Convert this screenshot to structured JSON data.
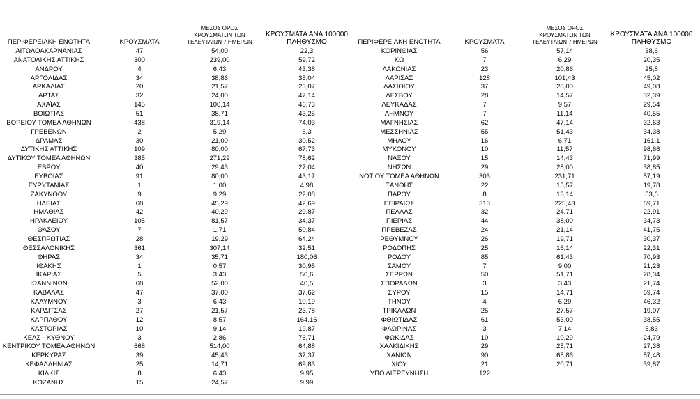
{
  "table": {
    "header": [
      "ΠΕΡΙΦΕΡΕΙΑΚΗ ΕΝΟΤΗΤΑ",
      "ΚΡΟΥΣΜΑΤΑ",
      "ΜΕΣΟΣ ΟΡΟΣ ΚΡΟΥΣΜΑΤΩΝ ΤΩΝ ΤΕΛΕΥΤΑΙΩΝ 7 ΗΜΕΡΩΝ",
      "ΚΡΟΥΣΜΑΤΑ ΑΝΑ 100000 ΠΛΗΘΥΣΜΟ",
      "ΠΕΡΙΦΕΡΕΙΑΚΗ ΕΝΟΤΗΤΑ",
      "ΚΡΟΥΣΜΑΤΑ",
      "ΜΕΣΟΣ ΟΡΟΣ ΚΡΟΥΣΜΑΤΩΝ ΤΩΝ ΤΕΛΕΥΤΑΙΩΝ 7 ΗΜΕΡΩΝ",
      "ΚΡΟΥΣΜΑΤΑ ΑΝΑ 100000 ΠΛΗΘΥΣΜΟ"
    ],
    "rows": [
      [
        "ΑΙΤΩΛΟΑΚΑΡΝΑΝΙΑΣ",
        "47",
        "54,00",
        "22,3",
        "ΚΟΡΙΝΘΙΑΣ",
        "56",
        "57,14",
        "38,6"
      ],
      [
        "ΑΝΑΤΟΛΙΚΗΣ ΑΤΤΙΚΗΣ",
        "300",
        "239,00",
        "59,72",
        "ΚΩ",
        "7",
        "6,29",
        "20,35"
      ],
      [
        "ΑΝΔΡΟΥ",
        "4",
        "6,43",
        "43,38",
        "ΛΑΚΩΝΙΑΣ",
        "23",
        "20,86",
        "25,8"
      ],
      [
        "ΑΡΓΟΛΙΔΑΣ",
        "34",
        "38,86",
        "35,04",
        "ΛΑΡΙΣΑΣ",
        "128",
        "101,43",
        "45,02"
      ],
      [
        "ΑΡΚΑΔΙΑΣ",
        "20",
        "21,57",
        "23,07",
        "ΛΑΣΙΘΙΟΥ",
        "37",
        "28,00",
        "49,08"
      ],
      [
        "ΑΡΤΑΣ",
        "32",
        "24,00",
        "47,14",
        "ΛΕΣΒΟΥ",
        "28",
        "14,57",
        "32,39"
      ],
      [
        "ΑΧΑΪΑΣ",
        "145",
        "100,14",
        "46,73",
        "ΛΕΥΚΑΔΑΣ",
        "7",
        "9,57",
        "29,54"
      ],
      [
        "ΒΟΙΩΤΙΑΣ",
        "51",
        "38,71",
        "43,25",
        "ΛΗΜΝΟΥ",
        "7",
        "11,14",
        "40,55"
      ],
      [
        "ΒΟΡΕΙΟΥ ΤΟΜΕΑ ΑΘΗΝΩΝ",
        "438",
        "319,14",
        "74,03",
        "ΜΑΓΝΗΣΙΑΣ",
        "62",
        "47,14",
        "32,63"
      ],
      [
        "ΓΡΕΒΕΝΩΝ",
        "2",
        "5,29",
        "6,3",
        "ΜΕΣΣΗΝΙΑΣ",
        "55",
        "51,43",
        "34,38"
      ],
      [
        "ΔΡΑΜΑΣ",
        "30",
        "21,00",
        "30,52",
        "ΜΗΛΟΥ",
        "16",
        "6,71",
        "161,1"
      ],
      [
        "ΔΥΤΙΚΗΣ ΑΤΤΙΚΗΣ",
        "109",
        "80,00",
        "67,73",
        "ΜΥΚΟΝΟΥ",
        "10",
        "11,57",
        "98,68"
      ],
      [
        "ΔΥΤΙΚΟΥ ΤΟΜΕΑ ΑΘΗΝΩΝ",
        "385",
        "271,29",
        "78,62",
        "ΝΑΞΟΥ",
        "15",
        "14,43",
        "71,99"
      ],
      [
        "ΕΒΡΟΥ",
        "40",
        "29,43",
        "27,04",
        "ΝΗΣΩΝ",
        "29",
        "28,00",
        "38,85"
      ],
      [
        "ΕΥΒΟΙΑΣ",
        "91",
        "80,00",
        "43,17",
        "ΝΟΤΙΟΥ ΤΟΜΕΑ ΑΘΗΝΩΝ",
        "303",
        "231,71",
        "57,19"
      ],
      [
        "ΕΥΡΥΤΑΝΙΑΣ",
        "1",
        "1,00",
        "4,98",
        "ΞΑΝΘΗΣ",
        "22",
        "15,57",
        "19,78"
      ],
      [
        "ΖΑΚΥΝΘΟΥ",
        "9",
        "9,29",
        "22,08",
        "ΠΑΡΟΥ",
        "8",
        "13,14",
        "53,6"
      ],
      [
        "ΗΛΕΙΑΣ",
        "68",
        "45,29",
        "42,69",
        "ΠΕΙΡΑΙΩΣ",
        "313",
        "225,43",
        "69,71"
      ],
      [
        "ΗΜΑΘΙΑΣ",
        "42",
        "40,29",
        "29,87",
        "ΠΕΛΛΑΣ",
        "32",
        "24,71",
        "22,91"
      ],
      [
        "ΗΡΑΚΛΕΙΟΥ",
        "105",
        "81,57",
        "34,37",
        "ΠΙΕΡΙΑΣ",
        "44",
        "38,00",
        "34,73"
      ],
      [
        "ΘΑΣΟΥ",
        "7",
        "1,71",
        "50,84",
        "ΠΡΕΒΕΖΑΣ",
        "24",
        "21,14",
        "41,75"
      ],
      [
        "ΘΕΣΠΡΩΤΙΑΣ",
        "28",
        "19,29",
        "64,24",
        "ΡΕΘΥΜΝΟΥ",
        "26",
        "19,71",
        "30,37"
      ],
      [
        "ΘΕΣΣΑΛΟΝΙΚΗΣ",
        "361",
        "307,14",
        "32,51",
        "ΡΟΔΟΠΗΣ",
        "25",
        "16,14",
        "22,31"
      ],
      [
        "ΘΗΡΑΣ",
        "34",
        "35,71",
        "180,06",
        "ΡΟΔΟΥ",
        "85",
        "61,43",
        "70,93"
      ],
      [
        "ΙΘΑΚΗΣ",
        "1",
        "0,57",
        "30,95",
        "ΣΑΜΟΥ",
        "7",
        "9,00",
        "21,23"
      ],
      [
        "ΙΚΑΡΙΑΣ",
        "5",
        "3,43",
        "50,6",
        "ΣΕΡΡΩΝ",
        "50",
        "51,71",
        "28,34"
      ],
      [
        "ΙΩΑΝΝΙΝΩΝ",
        "68",
        "52,00",
        "40,5",
        "ΣΠΟΡΑΔΩΝ",
        "3",
        "3,43",
        "21,74"
      ],
      [
        "ΚΑΒΑΛΑΣ",
        "47",
        "37,00",
        "37,62",
        "ΣΥΡΟΥ",
        "15",
        "14,71",
        "69,74"
      ],
      [
        "ΚΑΛΥΜΝΟΥ",
        "3",
        "6,43",
        "10,19",
        "ΤΗΝΟΥ",
        "4",
        "6,29",
        "46,32"
      ],
      [
        "ΚΑΡΔΙΤΣΑΣ",
        "27",
        "21,57",
        "23,78",
        "ΤΡΙΚΑΛΩΝ",
        "25",
        "27,57",
        "19,07"
      ],
      [
        "ΚΑΡΠΑΘΟΥ",
        "12",
        "8,57",
        "164,16",
        "ΦΘΙΩΤΙΔΑΣ",
        "61",
        "53,00",
        "38,55"
      ],
      [
        "ΚΑΣΤΟΡΙΑΣ",
        "10",
        "9,14",
        "19,87",
        "ΦΛΩΡΙΝΑΣ",
        "3",
        "7,14",
        "5,83"
      ],
      [
        "ΚΕΑΣ - ΚΥΘΝΟΥ",
        "3",
        "2,86",
        "76,71",
        "ΦΩΚΙΔΑΣ",
        "10",
        "10,29",
        "24,79"
      ],
      [
        "ΚΕΝΤΡΙΚΟΥ ΤΟΜΕΑ ΑΘΗΝΩΝ",
        "668",
        "514,00",
        "64,88",
        "ΧΑΛΚΙΔΙΚΗΣ",
        "29",
        "25,71",
        "27,38"
      ],
      [
        "ΚΕΡΚΥΡΑΣ",
        "39",
        "45,43",
        "37,37",
        "ΧΑΝΙΩΝ",
        "90",
        "65,86",
        "57,48"
      ],
      [
        "ΚΕΦΑΛΛΗΝΙΑΣ",
        "25",
        "14,71",
        "69,83",
        "ΧΙΟΥ",
        "21",
        "20,71",
        "39,87"
      ],
      [
        "ΚΙΛΚΙΣ",
        "8",
        "6,43",
        "9,95",
        "ΥΠΟ ΔΙΕΡΕΥΝΗΣΗ",
        "122"
      ],
      [
        "ΚΟΖΑΝΗΣ",
        "15",
        "24,57",
        "9,99"
      ]
    ]
  }
}
